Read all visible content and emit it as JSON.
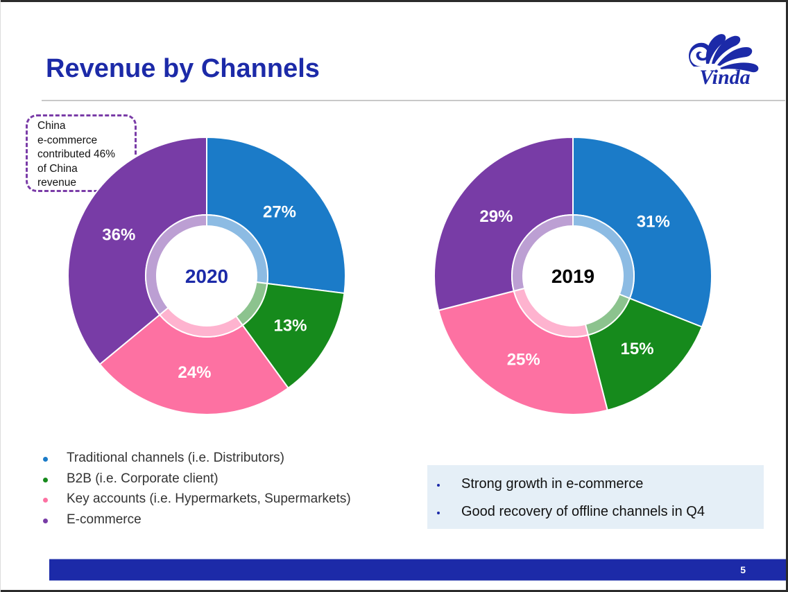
{
  "title": "Revenue by Channels",
  "logo": {
    "name": "Vinda",
    "color": "#1c2aa8"
  },
  "callout": {
    "lines": [
      "China",
      "e-commerce",
      "contributed 46%",
      "of China",
      "revenue"
    ],
    "border_color": "#7a3ca7"
  },
  "chart_data": [
    {
      "type": "pie",
      "variant": "donut",
      "title": "2020",
      "center_label": "2020",
      "center_label_color": "#1c2aa8",
      "start": "12 o'clock",
      "direction": "clockwise",
      "categories": [
        "Traditional channels (i.e. Distributors)",
        "B2B (i.e. Corporate client)",
        "Key accounts (i.e. Hypermarkets, Supermarkets)",
        "E-commerce"
      ],
      "values": [
        27,
        13,
        24,
        36
      ],
      "labels": [
        "27%",
        "13%",
        "24%",
        "36%"
      ],
      "colors": [
        "#1b7bc8",
        "#168a1c",
        "#fd71a2",
        "#783ca6"
      ],
      "ring_colors": [
        "#8cbbe3",
        "#8cc38e",
        "#feb3cf",
        "#bc9fd3"
      ],
      "unit": "%"
    },
    {
      "type": "pie",
      "variant": "donut",
      "title": "2019",
      "center_label": "2019",
      "center_label_color": "#000000",
      "start": "12 o'clock",
      "direction": "clockwise",
      "categories": [
        "Traditional channels (i.e. Distributors)",
        "B2B (i.e. Corporate client)",
        "Key accounts (i.e. Hypermarkets, Supermarkets)",
        "E-commerce"
      ],
      "values": [
        31,
        15,
        25,
        29
      ],
      "labels": [
        "31%",
        "15%",
        "25%",
        "29%"
      ],
      "colors": [
        "#1b7bc8",
        "#168a1c",
        "#fd71a2",
        "#783ca6"
      ],
      "ring_colors": [
        "#8cbbe3",
        "#8cc38e",
        "#feb3cf",
        "#bc9fd3"
      ],
      "unit": "%"
    }
  ],
  "legend": {
    "placement": "bottom-left",
    "items": [
      {
        "label": "Traditional channels (i.e. Distributors)",
        "color": "#1b7bc8"
      },
      {
        "label": "B2B (i.e. Corporate client)",
        "color": "#168a1c"
      },
      {
        "label": "Key accounts (i.e. Hypermarkets, Supermarkets)",
        "color": "#fd71a2"
      },
      {
        "label": "E-commerce",
        "color": "#783ca6"
      }
    ]
  },
  "notes": {
    "background": "#e5eff7",
    "items": [
      "Strong growth in e-commerce",
      "Good recovery of offline channels in Q4"
    ]
  },
  "footer": {
    "page_number": "5",
    "bar_color": "#1c2aa8"
  }
}
